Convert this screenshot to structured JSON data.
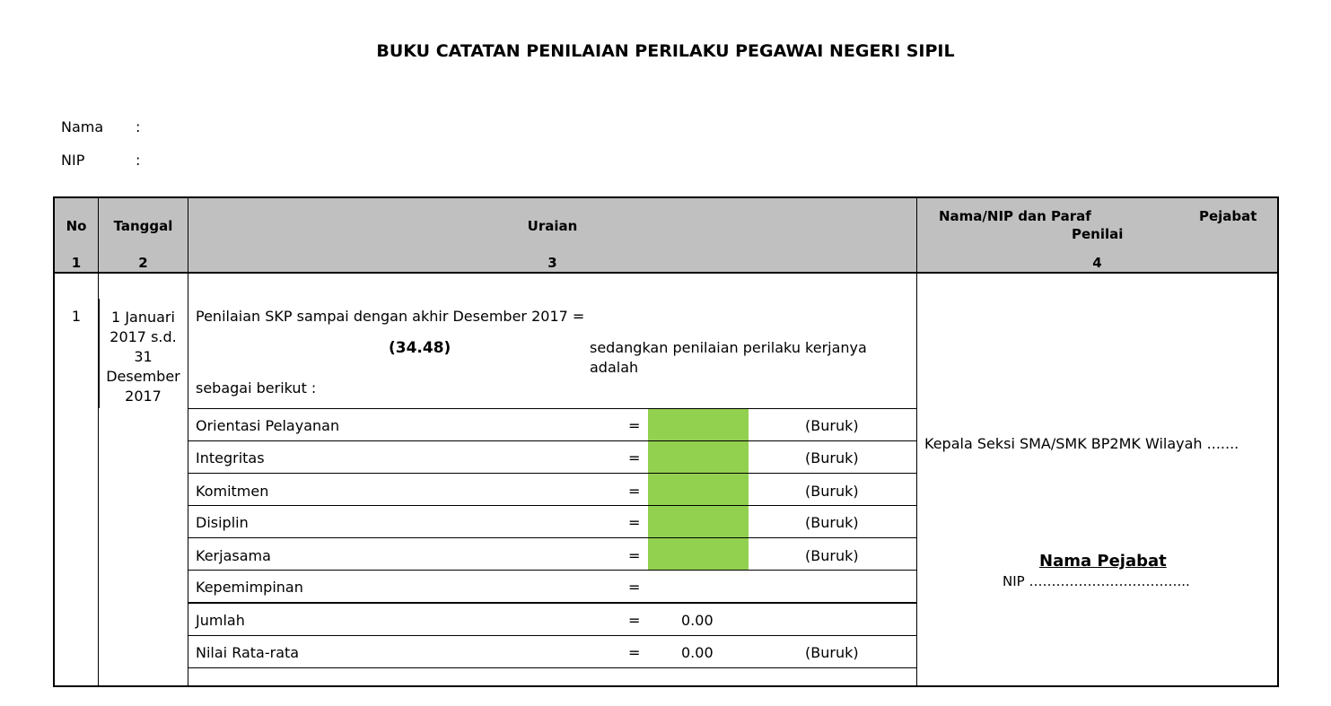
{
  "title": "BUKU CATATAN PENILAIAN PERILAKU PEGAWAI NEGERI SIPIL",
  "fields": {
    "nama_label": "Nama",
    "nip_label": "NIP",
    "colon": ":"
  },
  "header": {
    "col_no": "No",
    "col_tanggal": "Tanggal",
    "col_uraian": "Uraian",
    "col_nama_line1": "Nama/NIP dan Paraf",
    "col_nama_pejabat": "Pejabat",
    "col_nama_line2": "Penilai",
    "num_1": "1",
    "num_2": "2",
    "num_3": "3",
    "num_4": "4"
  },
  "row": {
    "no": "1",
    "tanggal_lines": [
      "1 Januari",
      "2017 s.d.",
      "31",
      "Desember",
      "2017"
    ],
    "skp_text": "Penilaian SKP sampai dengan akhir Desember 2017 =",
    "skp_value": "(34.48)",
    "perilaku_text_1": "sedangkan penilaian perilaku kerjanya",
    "perilaku_text_2": "adalah",
    "sebagai": "sebagai berikut :",
    "items": [
      {
        "label": "Orientasi Pelayanan",
        "eq": "=",
        "value": "",
        "status": "(Buruk)"
      },
      {
        "label": "Integritas",
        "eq": "=",
        "value": "",
        "status": "(Buruk)"
      },
      {
        "label": "Komitmen",
        "eq": "=",
        "value": "",
        "status": "(Buruk)"
      },
      {
        "label": "Disiplin",
        "eq": "=",
        "value": "",
        "status": "(Buruk)"
      },
      {
        "label": "Kerjasama",
        "eq": "=",
        "value": "",
        "status": "(Buruk)"
      },
      {
        "label": "Kepemimpinan",
        "eq": "=",
        "value": "",
        "status": ""
      },
      {
        "label": "Jumlah",
        "eq": "=",
        "value": "0.00",
        "status": ""
      },
      {
        "label": "Nilai Rata-rata",
        "eq": "=",
        "value": "0.00",
        "status": "(Buruk)"
      }
    ],
    "pejabat_jabatan": "Kepala Seksi SMA/SMK BP2MK Wilayah .......",
    "pejabat_nama": "Nama Pejabat",
    "pejabat_nip": "NIP ……………………………..."
  },
  "colors": {
    "header_bg": "#c0c0c0",
    "value_fill": "#92d050"
  }
}
